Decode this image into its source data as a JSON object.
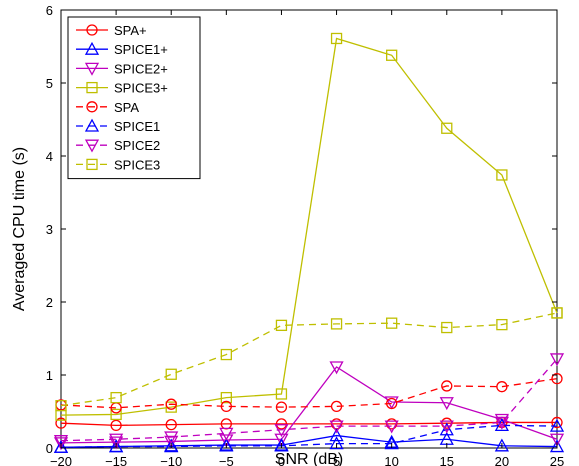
{
  "chart_data": {
    "type": "line",
    "title": "",
    "xlabel": "SNR (dB)",
    "ylabel": "Averaged CPU time (s)",
    "xlim": [
      -20,
      25
    ],
    "ylim": [
      0,
      6
    ],
    "x_ticks": [
      -20,
      -15,
      -10,
      -5,
      0,
      5,
      10,
      15,
      20,
      25
    ],
    "y_ticks": [
      0,
      1,
      2,
      3,
      4,
      5,
      6
    ],
    "x_tick_labels": [
      "−20",
      "−15",
      "−10",
      "−5",
      "0",
      "5",
      "10",
      "15",
      "20",
      "25"
    ],
    "y_tick_labels": [
      "0",
      "1",
      "2",
      "3",
      "4",
      "5",
      "6"
    ],
    "grid": false,
    "legend_position": "top-left",
    "x": [
      -20,
      -15,
      -10,
      -5,
      0,
      5,
      10,
      15,
      20,
      25
    ],
    "series": [
      {
        "name": "SPA+",
        "color": "#ff0000",
        "dash": "solid",
        "marker": "circle",
        "values": [
          0.34,
          0.31,
          0.32,
          0.33,
          0.33,
          0.33,
          0.33,
          0.34,
          0.35,
          0.35
        ]
      },
      {
        "name": "SPICE1+",
        "color": "#0000ff",
        "dash": "solid",
        "marker": "triangle-up",
        "values": [
          0.01,
          0.02,
          0.03,
          0.04,
          0.04,
          0.17,
          0.08,
          0.12,
          0.03,
          0.02
        ]
      },
      {
        "name": "SPICE2+",
        "color": "#bf00bf",
        "dash": "solid",
        "marker": "triangle-down",
        "values": [
          0.07,
          0.08,
          0.09,
          0.11,
          0.12,
          1.11,
          0.63,
          0.62,
          0.39,
          0.12
        ]
      },
      {
        "name": "SPICE3+",
        "color": "#bfbf00",
        "dash": "solid",
        "marker": "square",
        "values": [
          0.45,
          0.46,
          0.56,
          0.69,
          0.74,
          5.61,
          5.38,
          4.38,
          3.74,
          1.85
        ]
      },
      {
        "name": "SPA",
        "color": "#ff0000",
        "dash": "dashed",
        "marker": "circle",
        "values": [
          0.59,
          0.55,
          0.6,
          0.57,
          0.56,
          0.57,
          0.61,
          0.85,
          0.84,
          0.95
        ]
      },
      {
        "name": "SPICE1",
        "color": "#0000ff",
        "dash": "dashed",
        "marker": "triangle-up",
        "values": [
          0.01,
          0.02,
          0.02,
          0.03,
          0.03,
          0.06,
          0.06,
          0.25,
          0.31,
          0.3
        ]
      },
      {
        "name": "SPICE2",
        "color": "#bf00bf",
        "dash": "dashed",
        "marker": "triangle-down",
        "values": [
          0.1,
          0.12,
          0.15,
          0.2,
          0.25,
          0.3,
          0.3,
          0.3,
          0.35,
          1.22
        ]
      },
      {
        "name": "SPICE3",
        "color": "#bfbf00",
        "dash": "dashed",
        "marker": "square",
        "values": [
          0.58,
          0.69,
          1.01,
          1.28,
          1.68,
          1.7,
          1.71,
          1.65,
          1.69,
          1.85
        ]
      }
    ]
  }
}
